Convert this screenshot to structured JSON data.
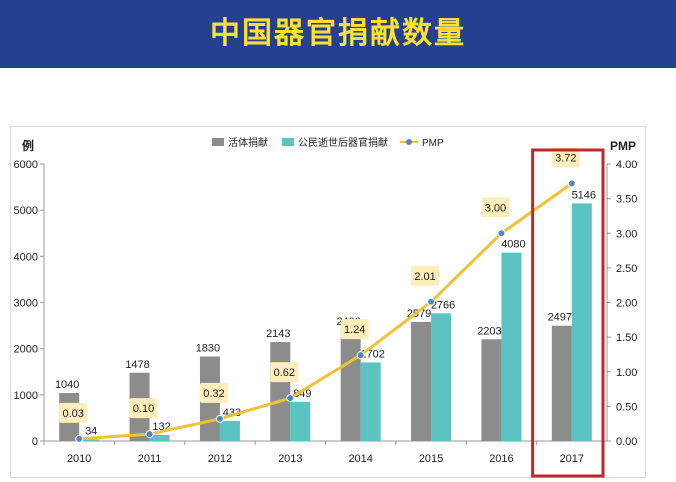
{
  "banner": {
    "title": "中国器官捐献数量"
  },
  "chart_data": {
    "type": "bar",
    "categories": [
      "2010",
      "2011",
      "2012",
      "2013",
      "2014",
      "2015",
      "2016",
      "2017"
    ],
    "series": [
      {
        "name": "活体捐献",
        "type": "bar",
        "axis": "left",
        "color": "#8c8c8c",
        "values": [
          1040,
          1478,
          1830,
          2143,
          2400,
          2579,
          2203,
          2497
        ]
      },
      {
        "name": "公民逝世后器官捐献",
        "type": "bar",
        "axis": "left",
        "color": "#5cc4c0",
        "values": [
          34,
          132,
          433,
          849,
          1702,
          2766,
          4080,
          5146
        ]
      },
      {
        "name": "PMP",
        "type": "line",
        "axis": "right",
        "color": "#f1c232",
        "values": [
          0.03,
          0.1,
          0.32,
          0.62,
          1.24,
          2.01,
          3.0,
          3.72
        ]
      }
    ],
    "left_axis": {
      "label": "例",
      "min": 0,
      "max": 6000,
      "ticks": [
        "0",
        "1000",
        "2000",
        "3000",
        "4000",
        "5000",
        "6000"
      ]
    },
    "right_axis": {
      "label": "PMP",
      "min": 0,
      "max": 4,
      "ticks": [
        "0.00",
        "0.50",
        "1.00",
        "1.50",
        "2.00",
        "2.50",
        "3.00",
        "3.50",
        "4.00"
      ]
    },
    "legend": "top-center",
    "grid": false,
    "highlight": {
      "category": "2017",
      "color": "#c0272d"
    }
  }
}
